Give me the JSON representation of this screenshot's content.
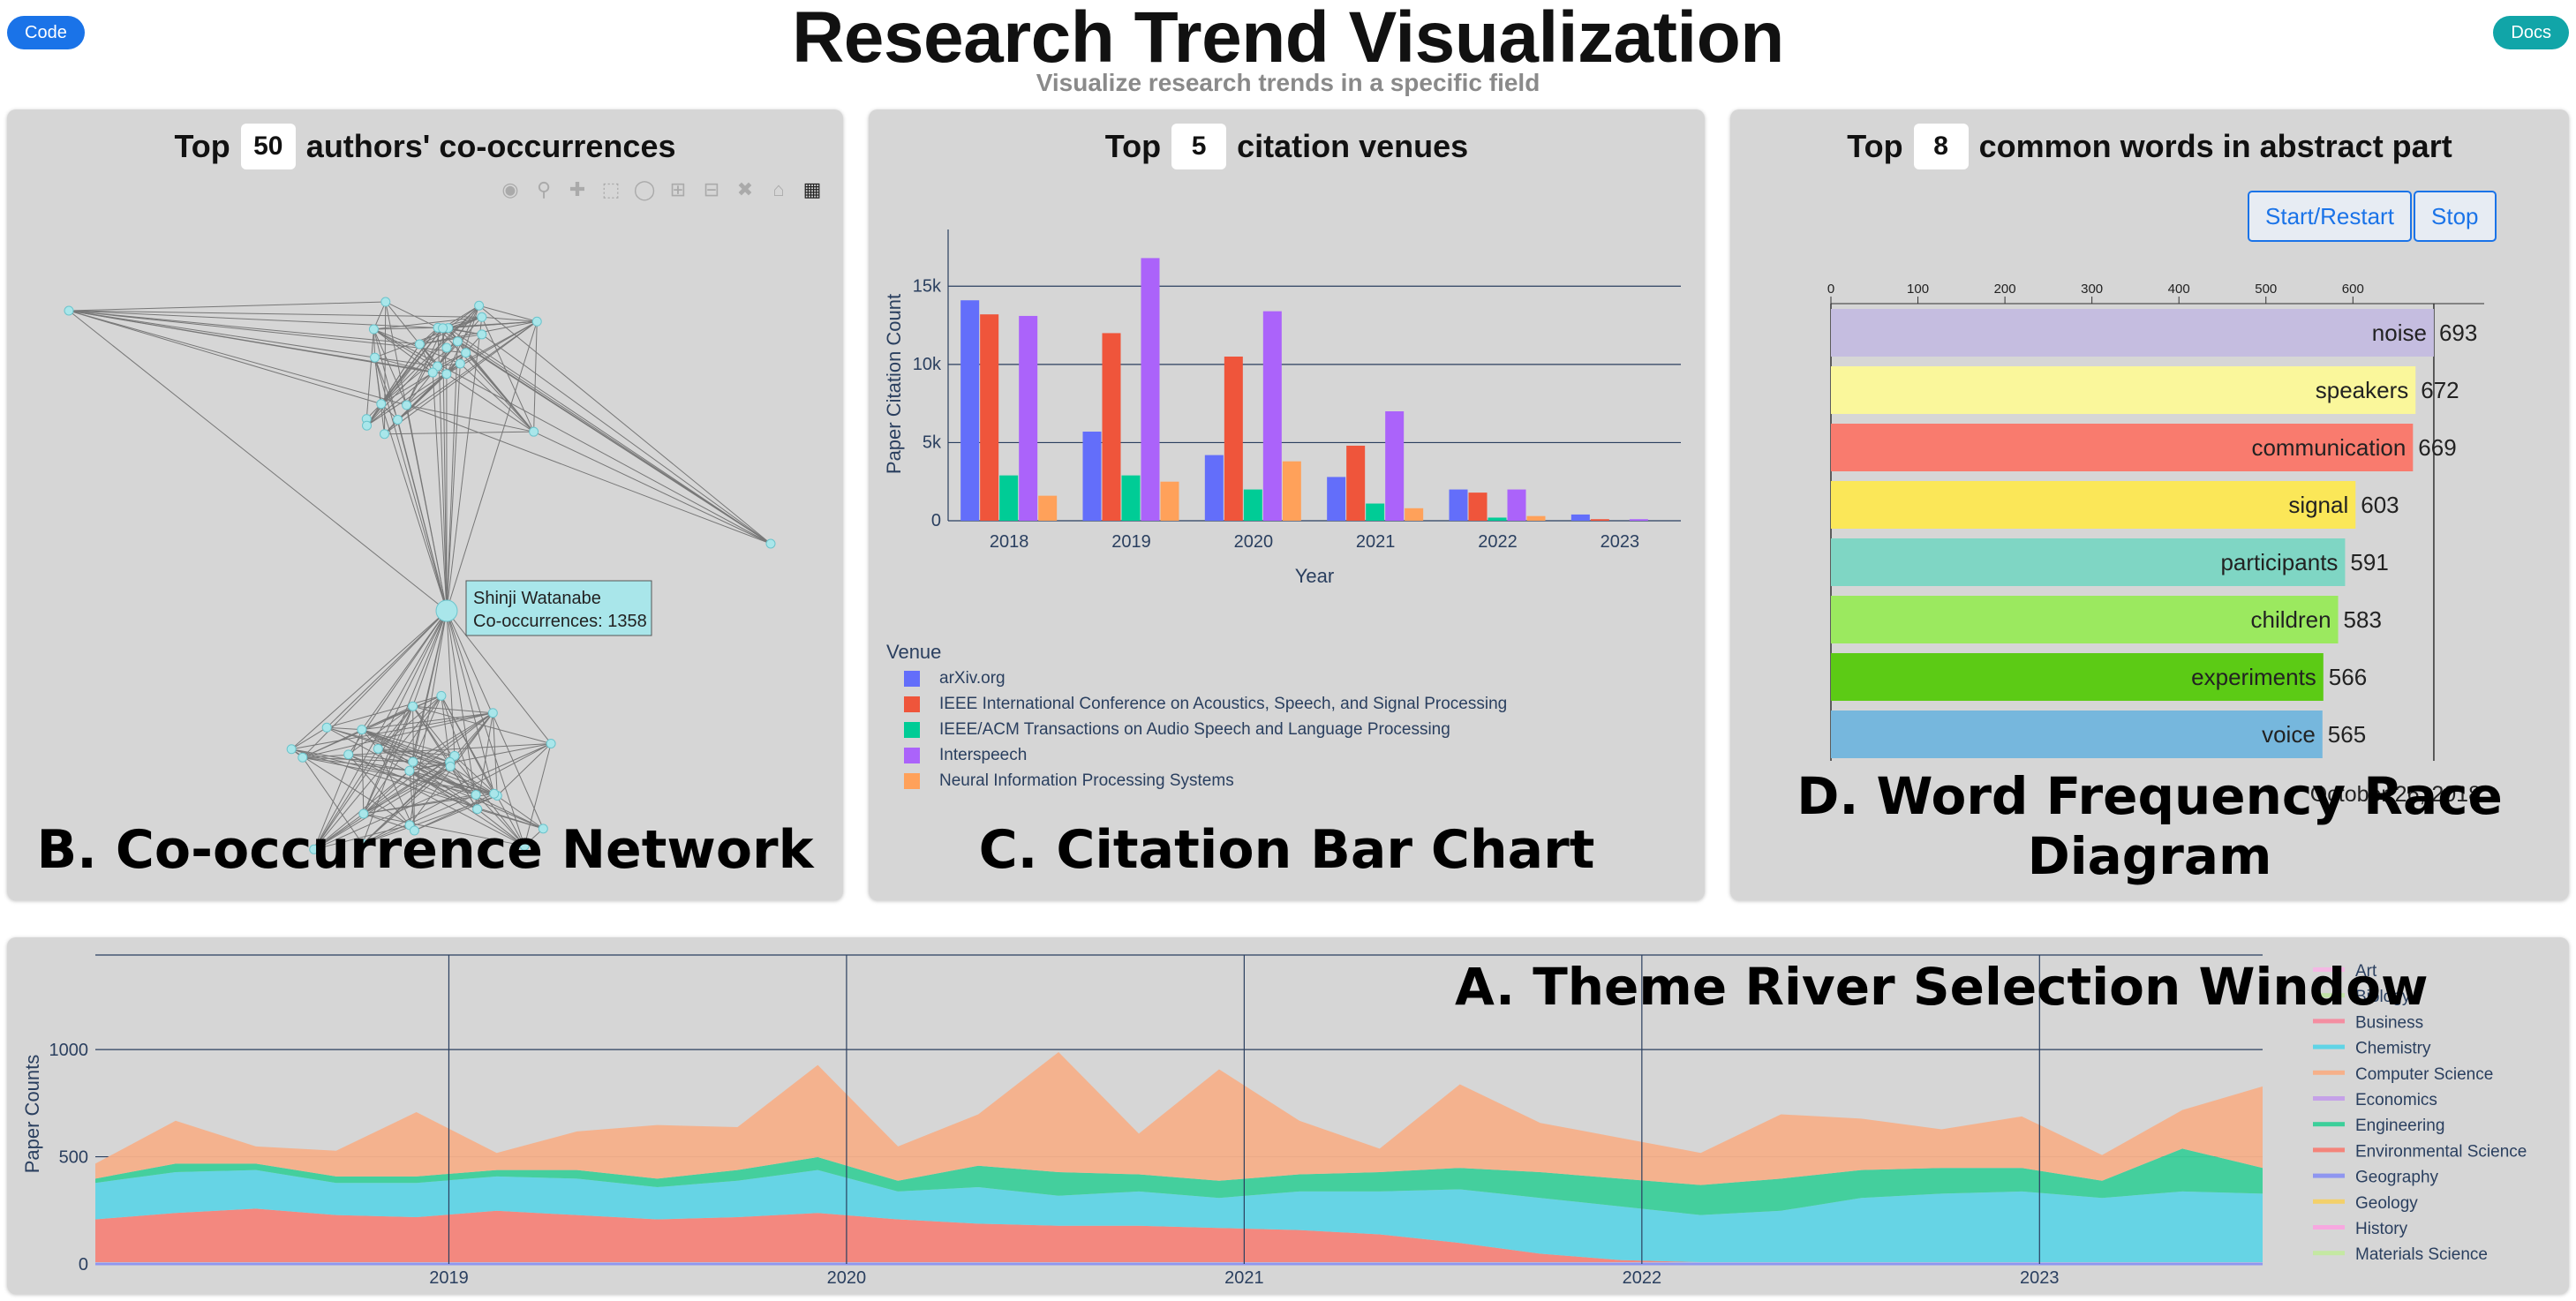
{
  "header": {
    "title": "Research Trend Visualization",
    "subtitle": "Visualize research trends in a specific field",
    "code_button": "Code",
    "docs_button": "Docs"
  },
  "panel_b": {
    "prefix": "Top",
    "value": "50",
    "suffix": "authors' co-occurrences",
    "label": "B. Co-occurrence Network",
    "tooltip_name": "Shinji Watanabe",
    "tooltip_value": "Co-occurrences: 1358",
    "modebar_icons": [
      "camera-icon",
      "zoom-icon",
      "pan-icon",
      "box-select-icon",
      "lasso-icon",
      "zoom-in-icon",
      "zoom-out-icon",
      "autoscale-icon",
      "reset-axes-icon",
      "plotly-logo-icon"
    ]
  },
  "panel_c": {
    "prefix": "Top",
    "value": "5",
    "suffix": "citation venues",
    "label": "C. Citation Bar Chart"
  },
  "panel_d": {
    "prefix": "Top",
    "value": "8",
    "suffix": "common words in abstract part",
    "label": "D. Word Frequency Race Diagram",
    "start_button": "Start/Restart",
    "stop_button": "Stop",
    "date": "October 26, 2018"
  },
  "panel_a": {
    "label": "A. Theme River Selection Window"
  },
  "chart_data": [
    {
      "type": "bar",
      "categories": [
        "2018",
        "2019",
        "2020",
        "2021",
        "2022",
        "2023"
      ],
      "xlabel": "Year",
      "ylabel": "Paper Citation Count",
      "yticks": [
        "0",
        "5k",
        "10k",
        "15k"
      ],
      "ylim": [
        0,
        17500
      ],
      "legend_title": "Venue",
      "legend_position": "bottom-left",
      "series": [
        {
          "name": "arXiv.org",
          "color": "#636efa",
          "values": [
            14100,
            5700,
            4200,
            2800,
            2000,
            400
          ]
        },
        {
          "name": "IEEE International Conference on Acoustics, Speech, and Signal Processing",
          "color": "#ef553b",
          "values": [
            13200,
            12000,
            10500,
            4800,
            1800,
            100
          ]
        },
        {
          "name": "IEEE/ACM Transactions on Audio Speech and Language Processing",
          "color": "#00cc96",
          "values": [
            2900,
            2900,
            2000,
            1100,
            200,
            0
          ]
        },
        {
          "name": "Interspeech",
          "color": "#ab63fa",
          "values": [
            13100,
            16800,
            13400,
            7000,
            2000,
            100
          ]
        },
        {
          "name": "Neural Information Processing Systems",
          "color": "#ffa15a",
          "values": [
            1600,
            2500,
            3800,
            800,
            300,
            0
          ]
        }
      ]
    },
    {
      "type": "bar",
      "orientation": "horizontal",
      "xticks": [
        "0",
        "100",
        "200",
        "300",
        "400",
        "500",
        "600"
      ],
      "xlim": [
        0,
        690
      ],
      "categories": [
        "noise",
        "speakers",
        "communication",
        "signal",
        "participants",
        "children",
        "experiments",
        "voice"
      ],
      "values": [
        693,
        672,
        669,
        603,
        591,
        583,
        566,
        565
      ],
      "colors": [
        "#c5bde0",
        "#faf79b",
        "#f97b6e",
        "#fbe758",
        "#7fd6c4",
        "#9be95f",
        "#5ccb15",
        "#76b7dd"
      ]
    },
    {
      "type": "area",
      "ylabel": "Paper Counts",
      "xticks": [
        "2019",
        "2020",
        "2021",
        "2022",
        "2023"
      ],
      "yticks": [
        "0",
        "500",
        "1000"
      ],
      "ylim": [
        0,
        1400
      ],
      "legend": [
        "Art",
        "Biology",
        "Business",
        "Chemistry",
        "Computer Science",
        "Economics",
        "Engineering",
        "Environmental Science",
        "Geography",
        "Geology",
        "History",
        "Materials Science"
      ],
      "legend_colors": [
        "#f4b8e4",
        "#bfe3a5",
        "#f48ea1",
        "#60d4e6",
        "#f6b08a",
        "#c5a1e8",
        "#3ccf9a",
        "#f4847a",
        "#8f96f0",
        "#f3d06a",
        "#f7a8e0",
        "#c4e8a2"
      ],
      "series": [
        {
          "name": "Chemistry",
          "color": "#60d4e6",
          "values": [
            170,
            190,
            180,
            150,
            160,
            160,
            170,
            150,
            170,
            200,
            130,
            170,
            140,
            160,
            140,
            180,
            200,
            250,
            260,
            250,
            220,
            240,
            300,
            320,
            330,
            300,
            330,
            320
          ]
        },
        {
          "name": "Computer Science",
          "color": "#f6b08a",
          "values": [
            70,
            200,
            80,
            120,
            300,
            80,
            180,
            250,
            200,
            430,
            160,
            240,
            560,
            190,
            520,
            250,
            110,
            390,
            230,
            190,
            150,
            300,
            240,
            180,
            240,
            120,
            180,
            380
          ]
        },
        {
          "name": "Engineering",
          "color": "#3ccf9a",
          "values": [
            20,
            40,
            30,
            30,
            30,
            30,
            40,
            40,
            50,
            60,
            50,
            100,
            110,
            80,
            80,
            80,
            90,
            100,
            120,
            130,
            140,
            150,
            130,
            120,
            110,
            80,
            200,
            120
          ]
        }
      ]
    }
  ]
}
